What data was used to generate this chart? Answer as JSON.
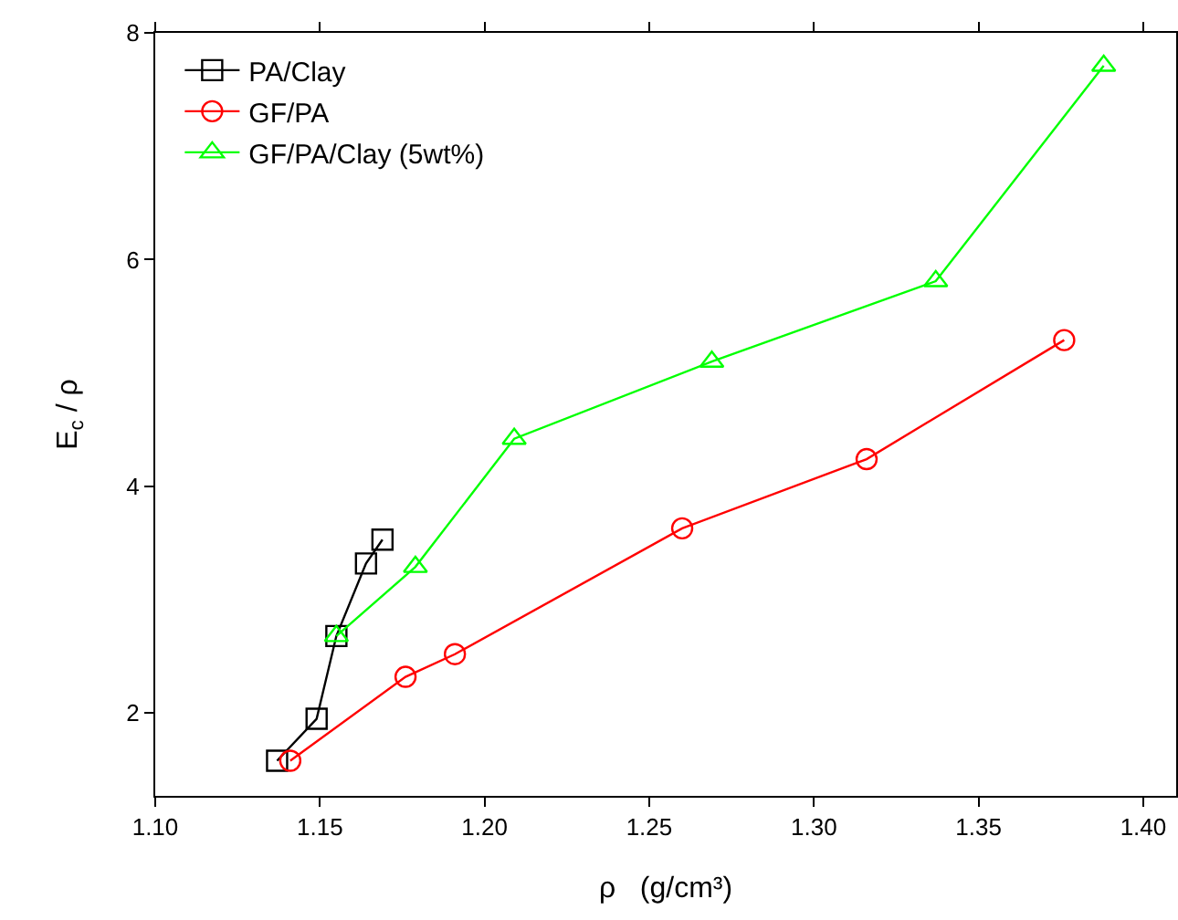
{
  "chart_data": {
    "type": "line",
    "xlabel": "ρ   (g/cm³)",
    "ylabel": "E$_{c}$ / ρ",
    "series": [
      {
        "name": "PA/Clay",
        "color": "#000000",
        "marker": "square",
        "x": [
          1.137,
          1.149,
          1.155,
          1.164,
          1.169
        ],
        "values": [
          1.58,
          1.95,
          2.68,
          3.32,
          3.53
        ]
      },
      {
        "name": "GF/PA",
        "color": "#ff0000",
        "marker": "circle",
        "x": [
          1.141,
          1.176,
          1.191,
          1.26,
          1.316,
          1.376
        ],
        "values": [
          1.58,
          2.32,
          2.52,
          3.63,
          4.24,
          5.29
        ]
      },
      {
        "name": "GF/PA/Clay (5wt%)",
        "color": "#00ff00",
        "marker": "triangle",
        "x": [
          1.155,
          1.179,
          1.209,
          1.269,
          1.337,
          1.388
        ],
        "values": [
          2.68,
          3.29,
          4.42,
          5.1,
          5.81,
          7.71
        ]
      }
    ],
    "xlim": [
      1.1,
      1.41
    ],
    "xticks": [
      {
        "value": 1.1,
        "label": "1.10"
      },
      1.15,
      {
        "value": 1.2,
        "label": "1.20"
      },
      1.25,
      {
        "value": 1.3,
        "label": "1.30"
      },
      1.35,
      {
        "value": 1.4,
        "label": "1.40"
      }
    ],
    "ylim": [
      1.27,
      8
    ],
    "yticks": [
      2,
      4,
      6,
      8
    ],
    "grid": false,
    "legend": "top left",
    "line_style": "solid"
  }
}
